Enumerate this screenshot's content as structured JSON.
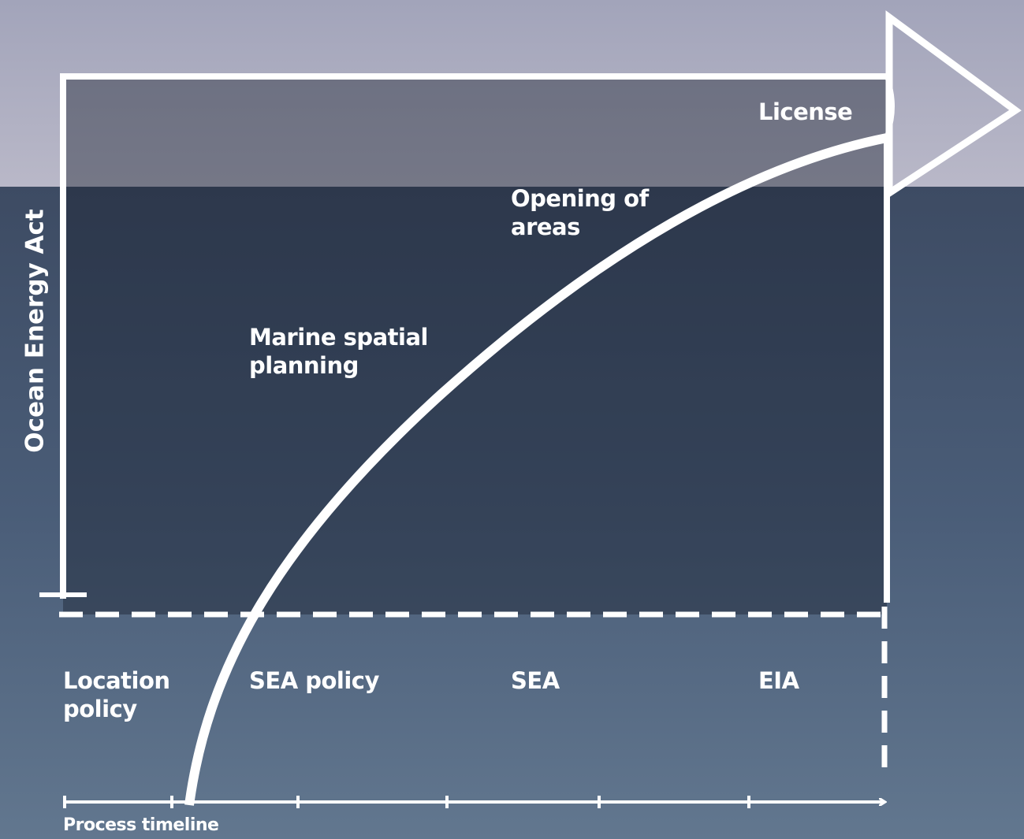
{
  "vertical_axis_label": "Ocean Energy Act",
  "horizontal_axis_label": "Process timeline",
  "stages": [
    {
      "label": "License"
    },
    {
      "label": "Opening of areas"
    },
    {
      "label": "Marine spatial planning"
    }
  ],
  "phases": [
    "Location policy",
    "SEA policy",
    "SEA",
    "EIA"
  ]
}
